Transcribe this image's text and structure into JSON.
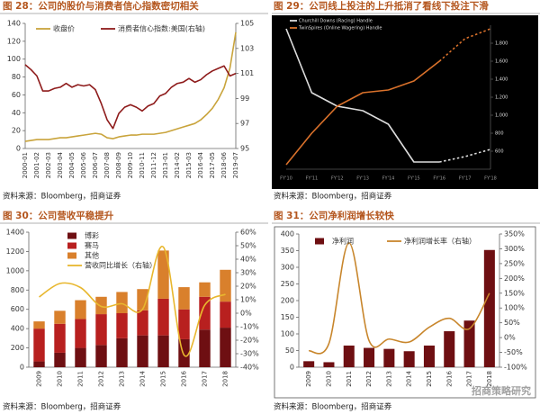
{
  "chart_data": [
    {
      "type": "line",
      "title": "图 28：公司的股价与消费者信心指数密切相关",
      "source": "资料来源：Bloomberg，招商证券",
      "categories": [
        "2000-01",
        null,
        "2001-02",
        null,
        "2002-03",
        null,
        "2003-04",
        null,
        "2004-05",
        null,
        "2005-06",
        null,
        "2006-07",
        null,
        "2007-08",
        null,
        "2008-09",
        null,
        "2009-10",
        null,
        "2010-11",
        null,
        "2011-12",
        null,
        "2013-01",
        null,
        "2014-02",
        null,
        "2015-03",
        null,
        "2016-04",
        null,
        "2017-05",
        null,
        "2018-06",
        null,
        "2019-07"
      ],
      "series": [
        {
          "name": "收盘价",
          "color": "#c9a43c",
          "values": [
            8,
            9,
            10,
            10,
            10,
            11,
            12,
            12,
            13,
            14,
            15,
            16,
            17,
            16,
            12,
            11,
            13,
            14,
            15,
            15,
            16,
            16,
            16,
            17,
            18,
            20,
            22,
            24,
            26,
            28,
            32,
            38,
            45,
            55,
            68,
            90,
            130
          ]
        },
        {
          "name": "消费者信心指数:美国(右轴)",
          "color": "#8e1b1b",
          "axis": "y2",
          "values": [
            101.7,
            101.3,
            100.8,
            99.6,
            99.6,
            99.8,
            99.9,
            100.2,
            99.9,
            100.1,
            100.0,
            100.1,
            99.7,
            98.6,
            97.3,
            96.6,
            97.8,
            98.3,
            98.5,
            98.3,
            98.0,
            98.4,
            98.6,
            99.2,
            99.4,
            99.9,
            100.2,
            100.3,
            100.6,
            100.3,
            100.5,
            100.9,
            101.2,
            101.4,
            101.6,
            100.8,
            101.0
          ]
        }
      ],
      "ylim": [
        0,
        140
      ],
      "yticks": [
        0,
        20,
        40,
        60,
        80,
        100,
        120,
        140
      ],
      "y2lim": [
        95,
        105
      ],
      "y2ticks": [
        95,
        97,
        99,
        101,
        103,
        105
      ]
    },
    {
      "type": "line",
      "title": "图 29：公司线上投注的上升抵消了看线下投注下滑",
      "source": "资料来源：Bloomberg，招商证券",
      "categories": [
        "FY'10",
        "FY'11",
        "FY'12",
        "FY'13",
        "FY'14",
        "FY'15",
        "FY'16",
        "FY'17",
        "FY'18"
      ],
      "series": [
        {
          "name": "Churchill Downs (Racing) Handle",
          "color": "#dddddd",
          "dashed_from": 6,
          "values": [
            1960,
            1250,
            1100,
            1050,
            900,
            480,
            480,
            540,
            620
          ]
        },
        {
          "name": "TwinSpires (Online Wagering) Handle",
          "color": "#d9712b",
          "dashed_from": 6,
          "values": [
            450,
            800,
            1100,
            1250,
            1280,
            1380,
            1600,
            1850,
            1960
          ]
        }
      ],
      "y_axis_side": "right",
      "background": "#000000",
      "ylim": [
        400,
        2000
      ],
      "yticks": [
        600,
        800,
        {
          "value": 1000,
          "label": "1,000"
        },
        {
          "value": 1200,
          "label": "1,200"
        },
        {
          "value": 1400,
          "label": "1,400"
        },
        {
          "value": 1600,
          "label": "1,600"
        },
        {
          "value": 1800,
          "label": "1,800"
        }
      ]
    },
    {
      "type": "bar",
      "title": "图 30：公司营收平稳提升",
      "source": "资料来源：Bloomberg，招商证券",
      "categories": [
        "2009",
        "2010",
        "2011",
        "2012",
        "2013",
        "2014",
        "2015",
        "2016",
        "2017",
        "2018"
      ],
      "series": [
        {
          "name": "博彩",
          "color": "#6e0f12",
          "values": [
            60,
            150,
            200,
            230,
            300,
            330,
            330,
            290,
            390,
            410
          ]
        },
        {
          "name": "赛马",
          "color": "#b8201f",
          "values": [
            340,
            300,
            300,
            320,
            260,
            260,
            380,
            310,
            340,
            270
          ]
        },
        {
          "name": "其他",
          "color": "#d9802c",
          "values": [
            75,
            135,
            195,
            180,
            220,
            220,
            500,
            230,
            150,
            330
          ]
        },
        {
          "name": "营收同比增长（右轴）",
          "type": "line",
          "smooth": true,
          "axis": "y2",
          "color": "#e8b72e",
          "values": [
            12,
            22,
            19,
            5,
            7,
            3,
            49,
            -31,
            6,
            14
          ]
        }
      ],
      "ylim": [
        0,
        1400
      ],
      "yticks": [
        0,
        200,
        400,
        600,
        800,
        1000,
        1200,
        1400
      ],
      "y2lim": [
        -40,
        60
      ],
      "y2ticks": [
        {
          "value": -40,
          "label": "-40%"
        },
        {
          "value": -30,
          "label": "-30%"
        },
        {
          "value": -20,
          "label": "-20%"
        },
        {
          "value": -10,
          "label": "-10%"
        },
        {
          "value": 0,
          "label": "0%"
        },
        {
          "value": 10,
          "label": "10%"
        },
        {
          "value": 20,
          "label": "20%"
        },
        {
          "value": 30,
          "label": "30%"
        },
        {
          "value": 40,
          "label": "40%"
        },
        {
          "value": 50,
          "label": "50%"
        },
        {
          "value": 60,
          "label": "60%"
        }
      ]
    },
    {
      "type": "bar",
      "title": "图 31：公司净利润增长较快",
      "source": "资料来源：Bloomberg，招商证券",
      "categories": [
        "2009",
        "2010",
        "2011",
        "2012",
        "2013",
        "2014",
        "2015",
        "2016",
        "2017",
        "2018"
      ],
      "series": [
        {
          "name": "净利润",
          "color": "#6e0f12",
          "values": [
            18,
            15,
            65,
            58,
            55,
            48,
            65,
            108,
            140,
            352
          ]
        },
        {
          "name": "净利润增长率（右轴）",
          "type": "line",
          "smooth": true,
          "axis": "y2",
          "color": "#c8862c",
          "values": [
            -45,
            -20,
            320,
            -10,
            -5,
            -15,
            35,
            65,
            30,
            150
          ]
        }
      ],
      "ylim": [
        0,
        400
      ],
      "yticks": [
        0,
        50,
        100,
        150,
        200,
        250,
        300,
        350,
        400
      ],
      "y2lim": [
        -100,
        350
      ],
      "y2ticks": [
        {
          "value": -100,
          "label": "-100%"
        },
        {
          "value": -50,
          "label": "-50%"
        },
        {
          "value": 0,
          "label": "0%"
        },
        {
          "value": 50,
          "label": "50%"
        },
        {
          "value": 100,
          "label": "100%"
        },
        {
          "value": 150,
          "label": "150%"
        },
        {
          "value": 200,
          "label": "200%"
        },
        {
          "value": 250,
          "label": "250%"
        },
        {
          "value": 300,
          "label": "300%"
        },
        {
          "value": 350,
          "label": "350%"
        }
      ]
    }
  ],
  "watermark": "招商策略研究"
}
